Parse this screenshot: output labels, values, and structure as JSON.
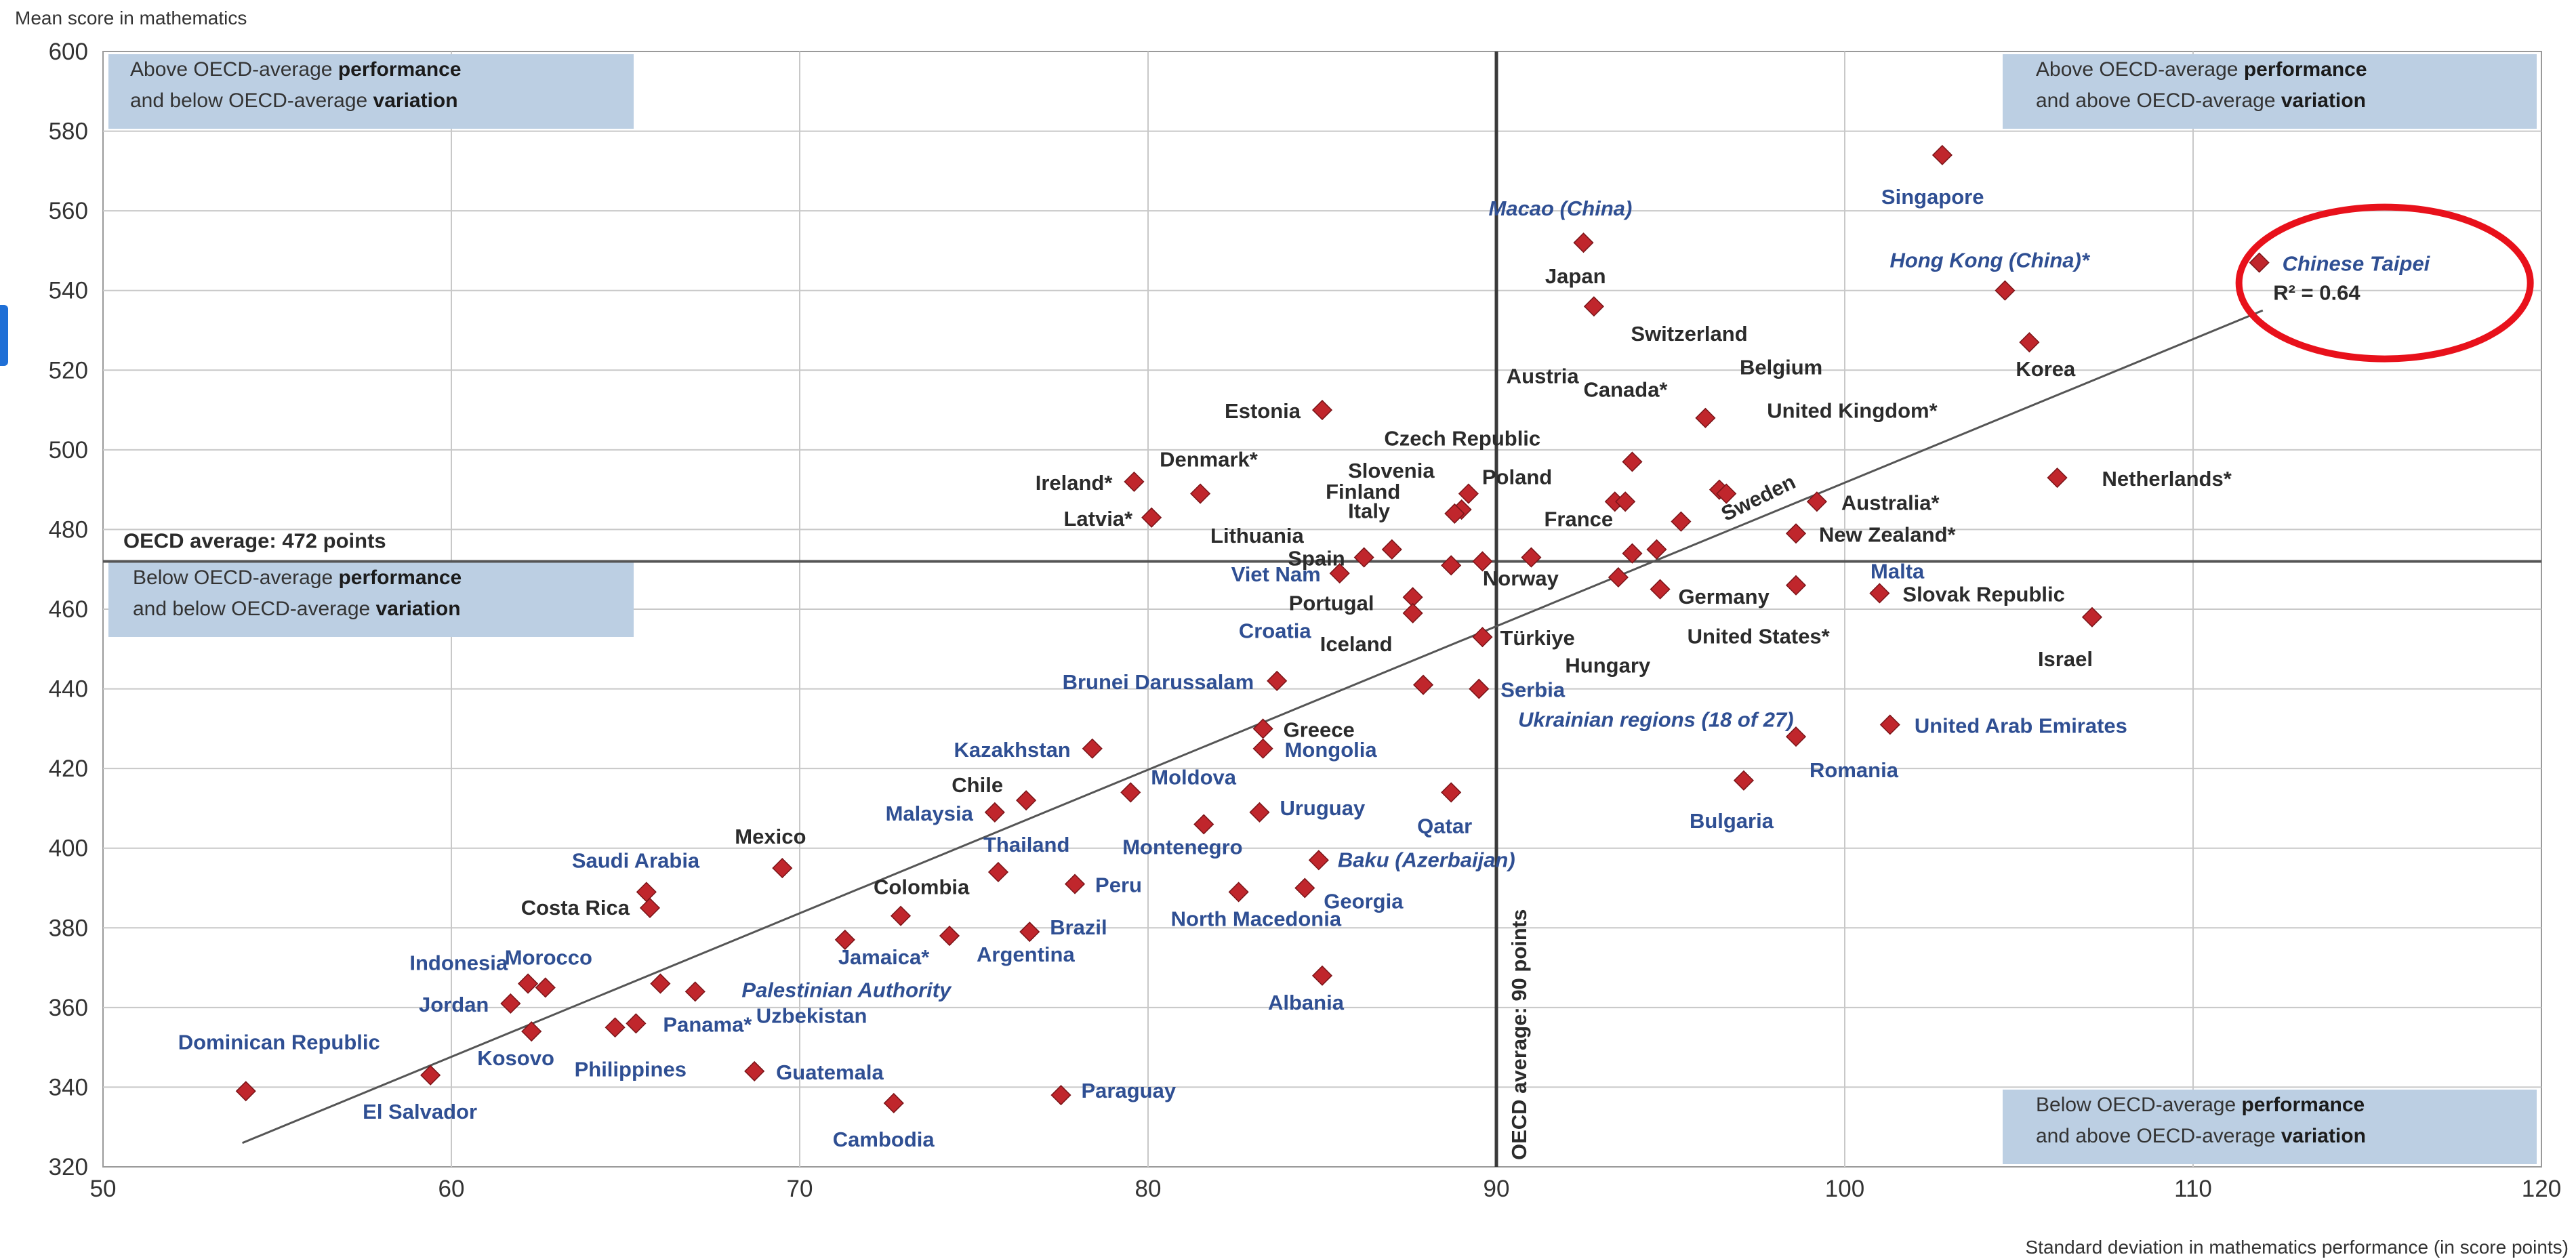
{
  "chart_data": {
    "type": "scatter",
    "ylabel": "Mean score in mathematics",
    "xlabel": "Standard deviation in mathematics performance (in score points)",
    "xlim": [
      50,
      120
    ],
    "ylim": [
      320,
      600
    ],
    "xticks": [
      50,
      60,
      70,
      80,
      90,
      100,
      110,
      120
    ],
    "yticks": [
      320,
      340,
      360,
      380,
      400,
      420,
      440,
      460,
      480,
      500,
      520,
      540,
      560,
      580,
      600
    ],
    "grid": true,
    "oecd_average_score": 472,
    "oecd_average_sd": 90,
    "oecd_average_score_label": "OECD average: 472 points",
    "oecd_average_sd_label": "OECD average: 90 points",
    "r_squared_label": "R² = 0.64",
    "trendline": {
      "x": [
        54,
        112
      ],
      "y": [
        326,
        535
      ]
    },
    "highlight_circle_on": "Chinese Taipei",
    "colors": {
      "marker": "#c0262c",
      "grid": "#c8c8c8",
      "box": "#bccfe3",
      "blue_label": "#2f4f93",
      "black_label": "#2b2b2b",
      "circle": "#e8111b"
    },
    "quadrant_boxes": [
      {
        "id": "top-left",
        "line1_pre": "Above OECD-average ",
        "line1_bold": "performance",
        "line2_pre": "and below OECD-average ",
        "line2_bold": "variation"
      },
      {
        "id": "top-right",
        "line1_pre": "Above OECD-average ",
        "line1_bold": "performance",
        "line2_pre": "and above OECD-average ",
        "line2_bold": "variation"
      },
      {
        "id": "mid-left",
        "line1_pre": "Below OECD-average ",
        "line1_bold": "performance",
        "line2_pre": "and below OECD-average ",
        "line2_bold": "variation"
      },
      {
        "id": "bottom-right",
        "line1_pre": "Below OECD-average ",
        "line1_bold": "performance",
        "line2_pre": "and above OECD-average ",
        "line2_bold": "variation"
      }
    ],
    "points": [
      {
        "name": "Singapore",
        "x": 102.8,
        "y": 574,
        "color": "blue"
      },
      {
        "name": "Macao (China)",
        "x": 92.5,
        "y": 552,
        "color": "blue",
        "italic": true
      },
      {
        "name": "Chinese Taipei",
        "x": 111.9,
        "y": 547,
        "color": "blue",
        "italic": true
      },
      {
        "name": "Hong Kong (China)*",
        "x": 104.6,
        "y": 540,
        "color": "blue",
        "italic": true
      },
      {
        "name": "Japan",
        "x": 92.8,
        "y": 536,
        "color": "black"
      },
      {
        "name": "Korea",
        "x": 105.3,
        "y": 527,
        "color": "black"
      },
      {
        "name": "Estonia",
        "x": 85.0,
        "y": 510,
        "color": "black"
      },
      {
        "name": "Switzerland",
        "x": 96.0,
        "y": 508,
        "color": "black"
      },
      {
        "name": "Canada*",
        "x": 93.9,
        "y": 497,
        "color": "black"
      },
      {
        "name": "Netherlands*",
        "x": 106.1,
        "y": 493,
        "color": "black"
      },
      {
        "name": "Ireland*",
        "x": 79.6,
        "y": 492,
        "color": "black"
      },
      {
        "name": "Belgium",
        "x": 96.4,
        "y": 490,
        "color": "black"
      },
      {
        "name": "Denmark*",
        "x": 81.5,
        "y": 489,
        "color": "black"
      },
      {
        "name": "United Kingdom*",
        "x": 96.6,
        "y": 489,
        "color": "black"
      },
      {
        "name": "Poland",
        "x": 89.2,
        "y": 489,
        "color": "black"
      },
      {
        "name": "Austria",
        "x": 93.4,
        "y": 487,
        "color": "black"
      },
      {
        "name": "Czech Republic",
        "x": 93.7,
        "y": 487,
        "color": "black"
      },
      {
        "name": "Australia*",
        "x": 99.2,
        "y": 487,
        "color": "black"
      },
      {
        "name": "Slovenia",
        "x": 89.0,
        "y": 485,
        "color": "black"
      },
      {
        "name": "Finland",
        "x": 88.8,
        "y": 484,
        "color": "black"
      },
      {
        "name": "Latvia*",
        "x": 80.1,
        "y": 483,
        "color": "black"
      },
      {
        "name": "Sweden",
        "x": 95.3,
        "y": 482,
        "color": "black"
      },
      {
        "name": "New Zealand*",
        "x": 98.6,
        "y": 479,
        "color": "black"
      },
      {
        "name": "Lithuania",
        "x": 87.0,
        "y": 475,
        "color": "black"
      },
      {
        "name": "Germany",
        "x": 94.6,
        "y": 475,
        "color": "black"
      },
      {
        "name": "France",
        "x": 93.9,
        "y": 474,
        "color": "black"
      },
      {
        "name": "Spain",
        "x": 86.2,
        "y": 473,
        "color": "black"
      },
      {
        "name": "Hungary",
        "x": 91.0,
        "y": 473,
        "color": "black"
      },
      {
        "name": "Italy",
        "x": 88.7,
        "y": 471,
        "color": "black"
      },
      {
        "name": "Portugal",
        "x": 89.6,
        "y": 472,
        "color": "black"
      },
      {
        "name": "Viet Nam",
        "x": 85.5,
        "y": 469,
        "color": "blue"
      },
      {
        "name": "Norway",
        "x": 93.5,
        "y": 468,
        "color": "black"
      },
      {
        "name": "Malta",
        "x": 98.6,
        "y": 466,
        "color": "blue"
      },
      {
        "name": "United States*",
        "x": 94.7,
        "y": 465,
        "color": "black"
      },
      {
        "name": "Slovak Republic",
        "x": 101.0,
        "y": 464,
        "color": "black"
      },
      {
        "name": "Croatia",
        "x": 87.6,
        "y": 463,
        "color": "blue"
      },
      {
        "name": "Iceland",
        "x": 87.6,
        "y": 459,
        "color": "black"
      },
      {
        "name": "Israel",
        "x": 107.1,
        "y": 458,
        "color": "black"
      },
      {
        "name": "Türkiye",
        "x": 89.6,
        "y": 453,
        "color": "black"
      },
      {
        "name": "Brunei Darussalam",
        "x": 83.7,
        "y": 442,
        "color": "blue"
      },
      {
        "name": "Serbia",
        "x": 89.5,
        "y": 440,
        "color": "blue"
      },
      {
        "name": "Ukrainian regions (18 of 27)",
        "x": 87.9,
        "y": 441,
        "color": "blue",
        "italic": true
      },
      {
        "name": "United Arab Emirates",
        "x": 101.3,
        "y": 431,
        "color": "blue"
      },
      {
        "name": "Greece",
        "x": 83.3,
        "y": 430,
        "color": "black"
      },
      {
        "name": "Romania",
        "x": 98.6,
        "y": 428,
        "color": "blue"
      },
      {
        "name": "Kazakhstan",
        "x": 78.4,
        "y": 425,
        "color": "blue"
      },
      {
        "name": "Mongolia",
        "x": 83.3,
        "y": 425,
        "color": "blue"
      },
      {
        "name": "Bulgaria",
        "x": 97.1,
        "y": 417,
        "color": "blue"
      },
      {
        "name": "Moldova",
        "x": 79.5,
        "y": 414,
        "color": "blue"
      },
      {
        "name": "Qatar",
        "x": 88.7,
        "y": 414,
        "color": "blue"
      },
      {
        "name": "Chile",
        "x": 76.5,
        "y": 412,
        "color": "black"
      },
      {
        "name": "Malaysia",
        "x": 75.6,
        "y": 409,
        "color": "blue"
      },
      {
        "name": "Uruguay",
        "x": 83.2,
        "y": 409,
        "color": "blue"
      },
      {
        "name": "Montenegro",
        "x": 81.6,
        "y": 406,
        "color": "blue"
      },
      {
        "name": "Baku (Azerbaijan)",
        "x": 84.9,
        "y": 397,
        "color": "blue",
        "italic": true
      },
      {
        "name": "Mexico",
        "x": 69.5,
        "y": 395,
        "color": "black"
      },
      {
        "name": "Thailand",
        "x": 75.7,
        "y": 394,
        "color": "blue"
      },
      {
        "name": "Peru",
        "x": 77.9,
        "y": 391,
        "color": "blue"
      },
      {
        "name": "Georgia",
        "x": 84.5,
        "y": 390,
        "color": "blue"
      },
      {
        "name": "Saudi Arabia",
        "x": 65.6,
        "y": 389,
        "color": "blue"
      },
      {
        "name": "North Macedonia",
        "x": 82.6,
        "y": 389,
        "color": "blue"
      },
      {
        "name": "Costa Rica",
        "x": 65.7,
        "y": 385,
        "color": "black"
      },
      {
        "name": "Colombia",
        "x": 72.9,
        "y": 383,
        "color": "black"
      },
      {
        "name": "Brazil",
        "x": 76.6,
        "y": 379,
        "color": "blue"
      },
      {
        "name": "Argentina",
        "x": 74.3,
        "y": 378,
        "color": "blue"
      },
      {
        "name": "Jamaica*",
        "x": 71.3,
        "y": 377,
        "color": "blue"
      },
      {
        "name": "Albania",
        "x": 85.0,
        "y": 368,
        "color": "blue"
      },
      {
        "name": "Morocco",
        "x": 62.7,
        "y": 365,
        "color": "blue"
      },
      {
        "name": "Indonesia",
        "x": 62.2,
        "y": 366,
        "color": "blue"
      },
      {
        "name": "Palestinian Authority",
        "x": 66.0,
        "y": 366,
        "color": "blue",
        "italic": true
      },
      {
        "name": "Uzbekistan",
        "x": 67.0,
        "y": 364,
        "color": "blue"
      },
      {
        "name": "Jordan",
        "x": 61.7,
        "y": 361,
        "color": "blue"
      },
      {
        "name": "Panama*",
        "x": 65.3,
        "y": 356,
        "color": "blue"
      },
      {
        "name": "Kosovo",
        "x": 62.3,
        "y": 354,
        "color": "blue"
      },
      {
        "name": "Philippines",
        "x": 64.7,
        "y": 355,
        "color": "blue"
      },
      {
        "name": "Guatemala",
        "x": 68.7,
        "y": 344,
        "color": "blue"
      },
      {
        "name": "El Salvador",
        "x": 59.4,
        "y": 343,
        "color": "blue"
      },
      {
        "name": "Dominican Republic",
        "x": 54.1,
        "y": 339,
        "color": "blue"
      },
      {
        "name": "Paraguay",
        "x": 77.5,
        "y": 338,
        "color": "blue"
      },
      {
        "name": "Cambodia",
        "x": 72.7,
        "y": 336,
        "color": "blue"
      }
    ]
  }
}
